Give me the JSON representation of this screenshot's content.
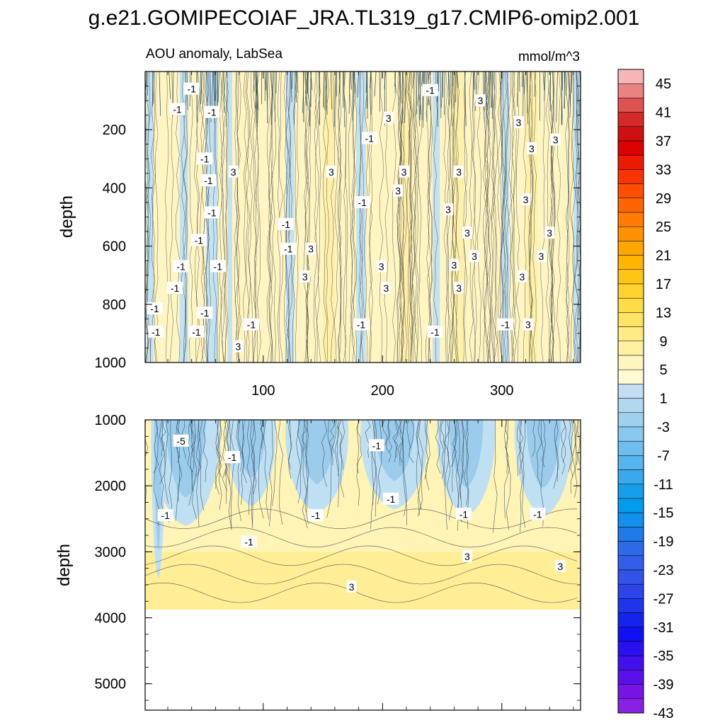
{
  "chart_data": {
    "type": "heatmap",
    "title": "g.e21.GOMIPECOIAF_JRA.TL319_g17.CMIP6-omip2.001",
    "subtitle": "AOU anomaly, LabSea",
    "units": "mmol/m^3",
    "xlim": [
      1,
      366
    ],
    "x_ticks": [
      100,
      200,
      300
    ],
    "panels": [
      {
        "name": "upper",
        "ylabel": "depth",
        "ylim": [
          0,
          1000
        ],
        "y_ticks": [
          200,
          400,
          600,
          800,
          1000
        ],
        "contour_labels": [
          {
            "x": 40,
            "y": 60,
            "text": "-1"
          },
          {
            "x": 28,
            "y": 130,
            "text": "-1"
          },
          {
            "x": 57,
            "y": 140,
            "text": "-1"
          },
          {
            "x": 205,
            "y": 160,
            "text": "3"
          },
          {
            "x": 240,
            "y": 65,
            "text": "-1"
          },
          {
            "x": 282,
            "y": 100,
            "text": "3"
          },
          {
            "x": 314,
            "y": 175,
            "text": "3"
          },
          {
            "x": 345,
            "y": 235,
            "text": "3"
          },
          {
            "x": 189,
            "y": 230,
            "text": "-1"
          },
          {
            "x": 325,
            "y": 265,
            "text": "3"
          },
          {
            "x": 51,
            "y": 300,
            "text": "-1"
          },
          {
            "x": 75,
            "y": 345,
            "text": "3"
          },
          {
            "x": 54,
            "y": 375,
            "text": "-1"
          },
          {
            "x": 157,
            "y": 345,
            "text": "3"
          },
          {
            "x": 218,
            "y": 345,
            "text": "3"
          },
          {
            "x": 264,
            "y": 345,
            "text": "3"
          },
          {
            "x": 213,
            "y": 410,
            "text": "3"
          },
          {
            "x": 183,
            "y": 450,
            "text": "-1"
          },
          {
            "x": 320,
            "y": 440,
            "text": "3"
          },
          {
            "x": 57,
            "y": 485,
            "text": "-1"
          },
          {
            "x": 255,
            "y": 475,
            "text": "3"
          },
          {
            "x": 119,
            "y": 525,
            "text": "-1"
          },
          {
            "x": 271,
            "y": 555,
            "text": "3"
          },
          {
            "x": 340,
            "y": 555,
            "text": "3"
          },
          {
            "x": 46,
            "y": 580,
            "text": "-1"
          },
          {
            "x": 121,
            "y": 610,
            "text": "-1"
          },
          {
            "x": 140,
            "y": 610,
            "text": "3"
          },
          {
            "x": 277,
            "y": 635,
            "text": "3"
          },
          {
            "x": 333,
            "y": 635,
            "text": "3"
          },
          {
            "x": 31,
            "y": 670,
            "text": "-1"
          },
          {
            "x": 62,
            "y": 670,
            "text": "-1"
          },
          {
            "x": 199,
            "y": 670,
            "text": "3"
          },
          {
            "x": 260,
            "y": 665,
            "text": "3"
          },
          {
            "x": 135,
            "y": 705,
            "text": "3"
          },
          {
            "x": 317,
            "y": 705,
            "text": "3"
          },
          {
            "x": 26,
            "y": 745,
            "text": "-1"
          },
          {
            "x": 203,
            "y": 745,
            "text": "3"
          },
          {
            "x": 264,
            "y": 745,
            "text": "3"
          },
          {
            "x": 9,
            "y": 815,
            "text": "-1"
          },
          {
            "x": 51,
            "y": 830,
            "text": "-1"
          },
          {
            "x": 10,
            "y": 895,
            "text": "-1"
          },
          {
            "x": 44,
            "y": 895,
            "text": "-1"
          },
          {
            "x": 90,
            "y": 870,
            "text": "-1"
          },
          {
            "x": 182,
            "y": 870,
            "text": "-1"
          },
          {
            "x": 303,
            "y": 870,
            "text": "-1"
          },
          {
            "x": 322,
            "y": 870,
            "text": "3"
          },
          {
            "x": 244,
            "y": 895,
            "text": "-1"
          },
          {
            "x": 79,
            "y": 945,
            "text": "3"
          }
        ]
      },
      {
        "name": "lower",
        "ylabel": "depth",
        "ylim": [
          1000,
          5400
        ],
        "y_ticks": [
          1000,
          2000,
          3000,
          4000,
          5000
        ],
        "data_bottom": 3880,
        "contour_labels": [
          {
            "x": 31,
            "y": 1320,
            "text": "-5"
          },
          {
            "x": 74,
            "y": 1570,
            "text": "-1"
          },
          {
            "x": 195,
            "y": 1390,
            "text": "-1"
          },
          {
            "x": 207,
            "y": 2200,
            "text": "-1"
          },
          {
            "x": 18,
            "y": 2450,
            "text": "-1"
          },
          {
            "x": 144,
            "y": 2450,
            "text": "-1"
          },
          {
            "x": 268,
            "y": 2430,
            "text": "-1"
          },
          {
            "x": 330,
            "y": 2430,
            "text": "-1"
          },
          {
            "x": 88,
            "y": 2850,
            "text": "-1"
          },
          {
            "x": 271,
            "y": 3070,
            "text": "3"
          },
          {
            "x": 349,
            "y": 3220,
            "text": "3"
          },
          {
            "x": 174,
            "y": 3530,
            "text": "3"
          }
        ]
      }
    ],
    "colorbar": {
      "label_values": [
        "45",
        "41",
        "37",
        "33",
        "29",
        "25",
        "21",
        "17",
        "13",
        "9",
        "5",
        "1",
        "-3",
        "-7",
        "-11",
        "-15",
        "-19",
        "-23",
        "-27",
        "-31",
        "-35",
        "-39",
        "-43"
      ],
      "colors": [
        "#f4b6b6",
        "#ea8282",
        "#e05252",
        "#d52a2a",
        "#cf1010",
        "#dc0000",
        "#ee1a00",
        "#f93400",
        "#ff4e00",
        "#ff6500",
        "#ff7c00",
        "#ff9100",
        "#ffa500",
        "#ffb400",
        "#ffc514",
        "#ffd22e",
        "#ffdc46",
        "#ffe464",
        "#ffeb86",
        "#fff0a2",
        "#fff5be",
        "#fff9d4",
        "#c2def0",
        "#b2d8ee",
        "#9fd0ee",
        "#88c8ee",
        "#6fbdee",
        "#56b4ee",
        "#38a9ec",
        "#149fea",
        "#009cee",
        "#1290ee",
        "#207aea",
        "#2c6ae8",
        "#325ee8",
        "#3252e8",
        "#2c44ea",
        "#2034ec",
        "#1424ee",
        "#1010f2",
        "#2a10f0",
        "#4010ee",
        "#5a10ea",
        "#7414e6",
        "#8a20e2"
      ]
    }
  }
}
